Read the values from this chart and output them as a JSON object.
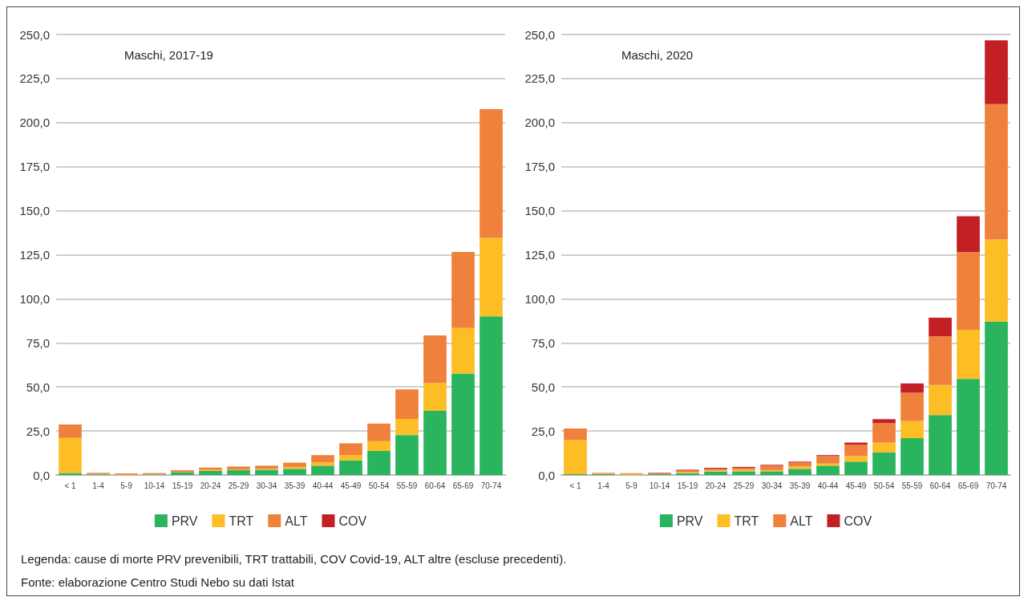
{
  "chart_data": [
    {
      "type": "bar",
      "title": "Maschi, 2017-19",
      "stacked": true,
      "grid": "y",
      "legend": "bottom",
      "categories": [
        "< 1",
        "1-4",
        "5-9",
        "10-14",
        "15-19",
        "20-24",
        "25-29",
        "30-34",
        "35-39",
        "40-44",
        "45-49",
        "50-54",
        "55-59",
        "60-64",
        "65-69",
        "70-74"
      ],
      "ylim": [
        0,
        250
      ],
      "yticks": [
        {
          "value": 0,
          "label": "0,0"
        },
        {
          "value": 25,
          "label": "25,0"
        },
        {
          "value": 50,
          "label": "50,0"
        },
        {
          "value": 75,
          "label": "75,0"
        },
        {
          "value": 100,
          "label": "100,0"
        },
        {
          "value": 125,
          "label": "125,0"
        },
        {
          "value": 150,
          "label": "150,0"
        },
        {
          "value": 175,
          "label": "175,0"
        },
        {
          "value": 200,
          "label": "200,0"
        },
        {
          "value": 225,
          "label": "225,0"
        },
        {
          "value": 250,
          "label": "250,0"
        }
      ],
      "series": [
        {
          "name": "PRV",
          "color": "#2ab45e",
          "values": [
            1.1,
            0.3,
            null,
            0.3,
            1.6,
            2.3,
            2.8,
            3.0,
            3.5,
            5.3,
            8.3,
            13.7,
            22.7,
            36.4,
            57.6,
            90.0
          ]
        },
        {
          "name": "TRT",
          "color": "#fdbd25",
          "values": [
            20.0,
            0.3,
            0.3,
            0.2,
            null,
            0.7,
            0.4,
            0.5,
            1.1,
            1.9,
            3.0,
            5.5,
            9.2,
            15.9,
            25.9,
            44.6
          ]
        },
        {
          "name": "ALT",
          "color": "#f0813c",
          "values": [
            7.6,
            0.7,
            0.6,
            0.6,
            1.1,
            1.2,
            1.6,
            1.8,
            2.4,
            4.1,
            6.7,
            10.0,
            16.7,
            26.9,
            43.1,
            73.1
          ]
        },
        {
          "name": "COV",
          "color": "#c32026",
          "values": [
            null,
            null,
            null,
            null,
            null,
            null,
            null,
            null,
            null,
            null,
            null,
            null,
            null,
            null,
            null,
            null
          ]
        }
      ],
      "annotations": [
        "Legenda: cause di morte PRV prevenibili, TRT trattabili, COV Covid-19, ALT altre (escluse precedenti).",
        "Fonte: elaborazione Centro Studi Nebo su dati Istat"
      ]
    },
    {
      "type": "bar",
      "title": "Maschi, 2020",
      "stacked": true,
      "grid": "y",
      "legend": "bottom",
      "categories": [
        "< 1",
        "1-4",
        "5-9",
        "10-14",
        "15-19",
        "20-24",
        "25-29",
        "30-34",
        "35-39",
        "40-44",
        "45-49",
        "50-54",
        "55-59",
        "60-64",
        "65-69",
        "70-74"
      ],
      "ylim": [
        0,
        250
      ],
      "yticks": [
        {
          "value": 0,
          "label": "0,0"
        },
        {
          "value": 25,
          "label": "25,0"
        },
        {
          "value": 50,
          "label": "50,0"
        },
        {
          "value": 75,
          "label": "75,0"
        },
        {
          "value": 100,
          "label": "100,0"
        },
        {
          "value": 125,
          "label": "125,0"
        },
        {
          "value": 150,
          "label": "150,0"
        },
        {
          "value": 175,
          "label": "175,0"
        },
        {
          "value": 200,
          "label": "200,0"
        },
        {
          "value": 225,
          "label": "225,0"
        },
        {
          "value": 250,
          "label": "250,0"
        }
      ],
      "series": [
        {
          "name": "PRV",
          "color": "#2ab45e",
          "values": [
            0.4,
            0.5,
            null,
            0.4,
            1.1,
            1.9,
            2.1,
            2.1,
            3.5,
            5.3,
            7.6,
            12.9,
            20.9,
            34.0,
            54.5,
            87.1
          ]
        },
        {
          "name": "TRT",
          "color": "#fdbd25",
          "values": [
            19.4,
            0.3,
            0.5,
            0.3,
            0.7,
            0.6,
            0.9,
            0.7,
            1.3,
            1.2,
            3.2,
            5.5,
            9.7,
            17.1,
            27.9,
            46.6
          ]
        },
        {
          "name": "ALT",
          "color": "#f0813c",
          "values": [
            6.6,
            0.4,
            0.5,
            null,
            0.7,
            1.0,
            1.1,
            2.5,
            2.3,
            4.3,
            6.5,
            11.0,
            16.1,
            27.6,
            44.1,
            76.8
          ]
        },
        {
          "name": "COV",
          "color": "#c32026",
          "values": [
            null,
            null,
            null,
            0.5,
            0.5,
            0.6,
            0.5,
            0.5,
            0.5,
            0.5,
            1.1,
            2.3,
            5.3,
            10.6,
            20.4,
            36.2
          ]
        }
      ]
    }
  ]
}
